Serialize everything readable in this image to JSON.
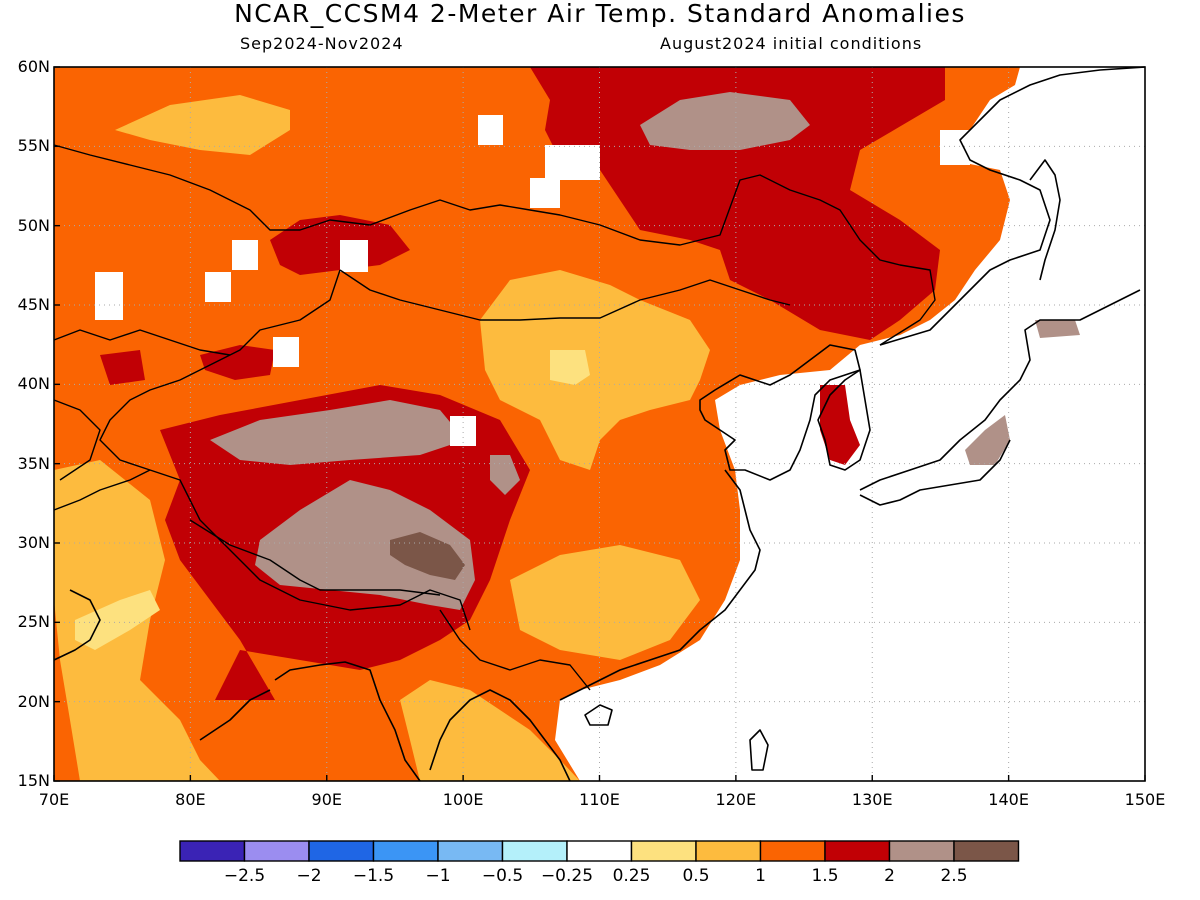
{
  "header": {
    "title": "NCAR_CCSM4 2-Meter Air Temp. Standard Anomalies",
    "period": "Sep2024-Nov2024",
    "initial": "August2024 initial conditions"
  },
  "axes": {
    "lat_labels": [
      "60N",
      "55N",
      "50N",
      "45N",
      "40N",
      "35N",
      "30N",
      "25N",
      "20N",
      "15N"
    ],
    "lon_labels": [
      "70E",
      "80E",
      "90E",
      "100E",
      "110E",
      "120E",
      "130E",
      "140E",
      "150E"
    ]
  },
  "colorbar": {
    "colors": [
      "#3a23b5",
      "#9b8df0",
      "#1f66e5",
      "#3b95f5",
      "#78b9f3",
      "#b4f0fa",
      "#ffffff",
      "#fde17f",
      "#fdbb3e",
      "#fa6402",
      "#c10005",
      "#b09188",
      "#7b5648"
    ],
    "labels": [
      "-2.5",
      "-2",
      "-1.5",
      "-1",
      "-0.5",
      "-0.25",
      "0.25",
      "0.5",
      "1",
      "1.5",
      "2",
      "2.5"
    ]
  },
  "palette": {
    "light_yellow": "#fde17f",
    "yellow_orange": "#fdbb3e",
    "orange": "#fa6402",
    "dark_red": "#c10005",
    "mauve": "#b09188",
    "brown": "#7b5648",
    "grid": "#aaaaaa"
  }
}
